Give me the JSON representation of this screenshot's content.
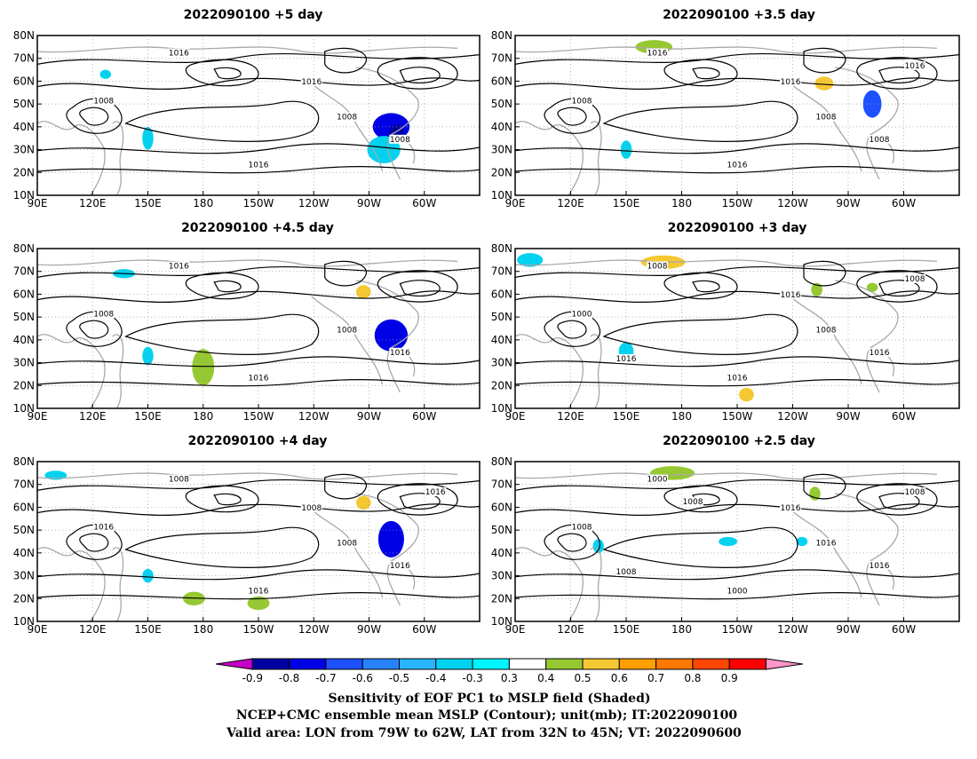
{
  "panels": [
    {
      "title": "2022090100  +5 day",
      "shade": [
        {
          "lon": 282,
          "lat": 40,
          "rx": 10,
          "ry": 6,
          "v": -0.75
        },
        {
          "lon": 285,
          "lat": 38,
          "rx": 4,
          "ry": 3,
          "v": -0.9
        },
        {
          "lon": 278,
          "lat": 30,
          "rx": 9,
          "ry": 6,
          "v": -0.35
        },
        {
          "lon": 268,
          "lat": 62,
          "rx": 6,
          "ry": 3,
          "v": 0.35
        },
        {
          "lon": 140,
          "lat": 15,
          "rx": 5,
          "ry": 3,
          "v": 0.35
        },
        {
          "lon": 165,
          "lat": 14,
          "rx": 8,
          "ry": 3,
          "v": 0.35
        },
        {
          "lon": 150,
          "lat": 35,
          "rx": 3,
          "ry": 5,
          "v": -0.35
        },
        {
          "lon": 127,
          "lat": 63,
          "rx": 3,
          "ry": 2,
          "v": -0.35
        }
      ]
    },
    {
      "title": "2022090100  +3.5 day",
      "shade": [
        {
          "lon": 165,
          "lat": 75,
          "rx": 10,
          "ry": 3,
          "v": 0.45
        },
        {
          "lon": 257,
          "lat": 59,
          "rx": 5,
          "ry": 3,
          "v": 0.5
        },
        {
          "lon": 283,
          "lat": 50,
          "rx": 5,
          "ry": 6,
          "v": -0.65
        },
        {
          "lon": 150,
          "lat": 30,
          "rx": 3,
          "ry": 4,
          "v": -0.35
        },
        {
          "lon": 200,
          "lat": 15,
          "rx": 3,
          "ry": 3,
          "v": 0.35
        },
        {
          "lon": 180,
          "lat": 40,
          "rx": 3,
          "ry": 3,
          "v": 0.35
        },
        {
          "lon": 248,
          "lat": 50,
          "rx": 3,
          "ry": 3,
          "v": 0.35
        }
      ]
    },
    {
      "title": "2022090100  +4.5 day",
      "shade": [
        {
          "lon": 282,
          "lat": 42,
          "rx": 9,
          "ry": 7,
          "v": -0.8
        },
        {
          "lon": 267,
          "lat": 61,
          "rx": 4,
          "ry": 3,
          "v": 0.5
        },
        {
          "lon": 185,
          "lat": 20,
          "rx": 22,
          "ry": 4,
          "v": 0.35
        },
        {
          "lon": 180,
          "lat": 28,
          "rx": 6,
          "ry": 8,
          "v": 0.4
        },
        {
          "lon": 150,
          "lat": 33,
          "rx": 3,
          "ry": 4,
          "v": -0.35
        },
        {
          "lon": 137,
          "lat": 69,
          "rx": 6,
          "ry": 2,
          "v": -0.35
        }
      ]
    },
    {
      "title": "2022090100  +3 day",
      "shade": [
        {
          "lon": 170,
          "lat": 74,
          "rx": 12,
          "ry": 3,
          "v": 0.5
        },
        {
          "lon": 98,
          "lat": 75,
          "rx": 7,
          "ry": 3,
          "v": -0.35
        },
        {
          "lon": 150,
          "lat": 35,
          "rx": 4,
          "ry": 4,
          "v": -0.35
        },
        {
          "lon": 180,
          "lat": 40,
          "rx": 8,
          "ry": 2,
          "v": 0.35
        },
        {
          "lon": 215,
          "lat": 16,
          "rx": 4,
          "ry": 3,
          "v": 0.5
        },
        {
          "lon": 253,
          "lat": 62,
          "rx": 3,
          "ry": 3,
          "v": 0.4
        },
        {
          "lon": 283,
          "lat": 63,
          "rx": 3,
          "ry": 2,
          "v": 0.4
        }
      ]
    },
    {
      "title": "2022090100  +4 day",
      "shade": [
        {
          "lon": 282,
          "lat": 46,
          "rx": 7,
          "ry": 8,
          "v": -0.75
        },
        {
          "lon": 267,
          "lat": 62,
          "rx": 4,
          "ry": 3,
          "v": 0.5
        },
        {
          "lon": 185,
          "lat": 17,
          "rx": 25,
          "ry": 5,
          "v": 0.35
        },
        {
          "lon": 180,
          "lat": 35,
          "rx": 5,
          "ry": 12,
          "v": 0.35
        },
        {
          "lon": 210,
          "lat": 18,
          "rx": 6,
          "ry": 3,
          "v": 0.45
        },
        {
          "lon": 175,
          "lat": 20,
          "rx": 6,
          "ry": 3,
          "v": 0.45
        },
        {
          "lon": 168,
          "lat": 76,
          "rx": 8,
          "ry": 2,
          "v": 0.35
        },
        {
          "lon": 100,
          "lat": 74,
          "rx": 6,
          "ry": 2,
          "v": -0.35
        },
        {
          "lon": 150,
          "lat": 30,
          "rx": 3,
          "ry": 3,
          "v": -0.35
        }
      ]
    },
    {
      "title": "2022090100  +2.5 day",
      "shade": [
        {
          "lon": 175,
          "lat": 75,
          "rx": 12,
          "ry": 3,
          "v": 0.45
        },
        {
          "lon": 205,
          "lat": 45,
          "rx": 5,
          "ry": 2,
          "v": -0.35
        },
        {
          "lon": 252,
          "lat": 66,
          "rx": 3,
          "ry": 3,
          "v": 0.4
        },
        {
          "lon": 135,
          "lat": 43,
          "rx": 3,
          "ry": 3,
          "v": -0.35
        },
        {
          "lon": 198,
          "lat": 47,
          "rx": 3,
          "ry": 2,
          "v": 0.35
        },
        {
          "lon": 245,
          "lat": 45,
          "rx": 3,
          "ry": 2,
          "v": -0.35
        }
      ]
    }
  ],
  "contour_labels": [
    [
      "1016",
      "1008",
      "1008",
      "1008",
      "1016",
      "1016"
    ],
    [
      "1016",
      "1008",
      "1008",
      "1008",
      "1016",
      "1016",
      "1016"
    ],
    [
      "1016",
      "1008",
      "1008",
      "1016",
      "1016"
    ],
    [
      "1008",
      "1000",
      "1008",
      "1016",
      "1016",
      "1016",
      "1008",
      "1016"
    ],
    [
      "1008",
      "1016",
      "1008",
      "1016",
      "1016",
      "1008",
      "1016"
    ],
    [
      "1000",
      "1008",
      "1016",
      "1016",
      "1000",
      "1016",
      "1008",
      "1008",
      "1008"
    ]
  ],
  "axes": {
    "lat_labels": [
      "80N",
      "70N",
      "60N",
      "50N",
      "40N",
      "30N",
      "20N",
      "10N"
    ],
    "lon_labels": [
      "90E",
      "120E",
      "150E",
      "180",
      "150W",
      "120W",
      "90W",
      "60W"
    ],
    "lon_values": [
      90,
      120,
      150,
      180,
      210,
      240,
      270,
      300
    ],
    "lat_values": [
      80,
      70,
      60,
      50,
      40,
      30,
      20,
      10
    ],
    "lon_range": [
      90,
      330
    ],
    "lat_range": [
      10,
      80
    ]
  },
  "colorbar": {
    "ticks": [
      "-0.9",
      "-0.8",
      "-0.7",
      "-0.6",
      "-0.5",
      "-0.4",
      "-0.3",
      "0.3",
      "0.4",
      "0.5",
      "0.6",
      "0.7",
      "0.8",
      "0.9"
    ],
    "colors": [
      "#c800c8",
      "#0000a0",
      "#0000e6",
      "#1e50ff",
      "#2882ff",
      "#28b4ff",
      "#00d2f0",
      "#00f5ff",
      "#ffffff",
      "#96c832",
      "#f5c832",
      "#ffa000",
      "#ff7800",
      "#ff4600",
      "#ff0000",
      "#ff96c8"
    ]
  },
  "footer": {
    "line1": "Sensitivity of EOF PC1 to MSLP field (Shaded)",
    "line2": "NCEP+CMC ensemble mean MSLP (Contour); unit(mb); IT:2022090100",
    "line3": "Valid area: LON from 79W to 62W, LAT from 32N to 45N; VT: 2022090600"
  }
}
